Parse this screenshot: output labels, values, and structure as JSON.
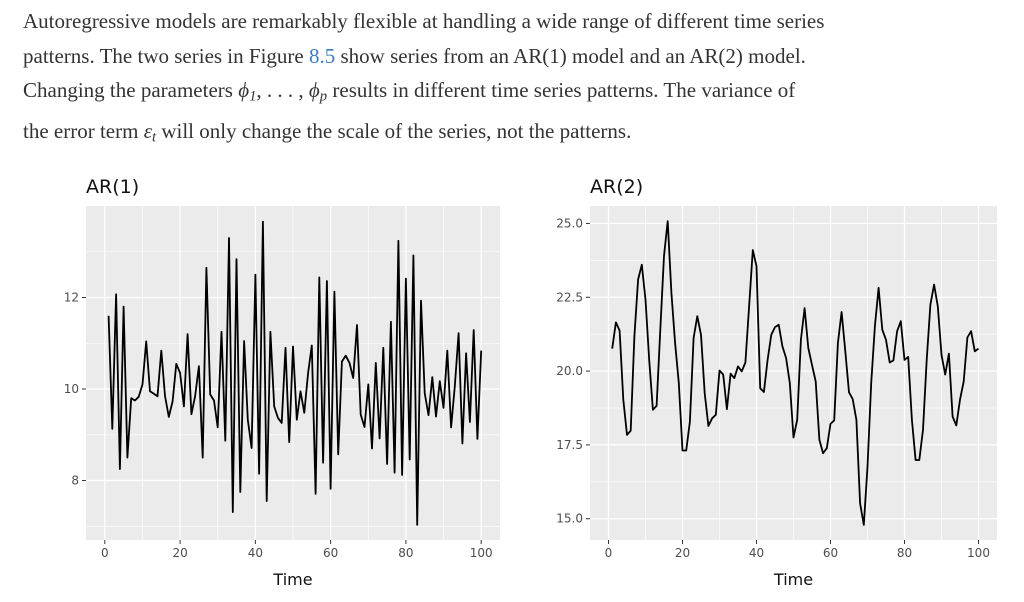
{
  "paragraph": {
    "l1": "Autoregressive models are remarkably flexible at handling a wide range of different time series",
    "l2a": "patterns. The two series in Figure ",
    "l2link": "8.5",
    "l2b": " show series from an AR(1) model and an AR(2) model.",
    "l3a": "Changing the parameters ",
    "phi": "ϕ",
    "sub1": "1",
    "dots": ", . . . , ",
    "subp": "p",
    "l3b": " results in different time series patterns. The variance of",
    "l4a": "the error term ",
    "eps": "ε",
    "subt": "t",
    "l4b": " will only change the scale of the series, not the patterns."
  },
  "colors": {
    "panel_bg": "#ebebeb",
    "grid": "#ffffff",
    "line": "#000000",
    "link": "#3a7bbf"
  },
  "chart_data": [
    {
      "type": "line",
      "title": "AR(1)",
      "xlabel": "Time",
      "ylabel": "",
      "xlim": [
        -5,
        105
      ],
      "ylim": [
        6.7,
        14.0
      ],
      "xticks": [
        "0",
        "20",
        "40",
        "60",
        "80",
        "100"
      ],
      "xtick_values": [
        0,
        20,
        40,
        60,
        80,
        100
      ],
      "yticks": [
        "8",
        "10",
        "12"
      ],
      "ytick_values": [
        8,
        10,
        12
      ],
      "grid": true,
      "x": [
        1,
        2,
        3,
        4,
        5,
        6,
        7,
        8,
        9,
        10,
        11,
        12,
        13,
        14,
        15,
        16,
        17,
        18,
        19,
        20,
        21,
        22,
        23,
        24,
        25,
        26,
        27,
        28,
        29,
        30,
        31,
        32,
        33,
        34,
        35,
        36,
        37,
        38,
        39,
        40,
        41,
        42,
        43,
        44,
        45,
        46,
        47,
        48,
        49,
        50,
        51,
        52,
        53,
        54,
        55,
        56,
        57,
        58,
        59,
        60,
        61,
        62,
        63,
        64,
        65,
        66,
        67,
        68,
        69,
        70,
        71,
        72,
        73,
        74,
        75,
        76,
        77,
        78,
        79,
        80,
        81,
        82,
        83,
        84,
        85,
        86,
        87,
        88,
        89,
        90,
        91,
        92,
        93,
        94,
        95,
        96,
        97,
        98,
        99,
        100
      ],
      "y": [
        11.6,
        9.13,
        12.07,
        8.25,
        11.8,
        8.5,
        9.8,
        9.75,
        9.83,
        10.1,
        11.04,
        9.95,
        9.9,
        9.84,
        10.84,
        9.85,
        9.39,
        9.73,
        10.55,
        10.35,
        9.62,
        11.2,
        9.45,
        9.84,
        10.5,
        8.5,
        12.65,
        9.88,
        9.75,
        9.16,
        11.25,
        8.87,
        13.3,
        7.31,
        12.84,
        7.75,
        11.05,
        9.33,
        8.71,
        12.5,
        8.15,
        13.66,
        7.55,
        11.25,
        9.62,
        9.37,
        9.26,
        10.9,
        8.84,
        10.93,
        9.33,
        9.95,
        9.48,
        10.35,
        10.95,
        7.71,
        12.44,
        8.39,
        12.36,
        7.82,
        12.13,
        8.57,
        10.6,
        10.73,
        10.57,
        10.24,
        11.4,
        9.44,
        9.17,
        10.1,
        8.7,
        10.57,
        8.92,
        10.9,
        8.36,
        11.47,
        8.17,
        13.24,
        8.12,
        12.41,
        8.46,
        12.92,
        7.03,
        11.93,
        9.91,
        9.43,
        10.26,
        9.4,
        10.17,
        9.59,
        10.84,
        9.16,
        10.06,
        11.22,
        8.81,
        10.78,
        9.28,
        11.29,
        8.91,
        10.84
      ]
    },
    {
      "type": "line",
      "title": "AR(2)",
      "xlabel": "Time",
      "ylabel": "",
      "xlim": [
        -5,
        105
      ],
      "ylim": [
        14.28,
        25.59
      ],
      "xticks": [
        "0",
        "20",
        "40",
        "60",
        "80",
        "100"
      ],
      "xtick_values": [
        0,
        20,
        40,
        60,
        80,
        100
      ],
      "yticks": [
        "15.0",
        "17.5",
        "20.0",
        "22.5",
        "25.0"
      ],
      "ytick_values": [
        15,
        17.5,
        20,
        22.5,
        25
      ],
      "grid": true,
      "x": [
        1,
        2,
        3,
        4,
        5,
        6,
        7,
        8,
        9,
        10,
        11,
        12,
        13,
        14,
        15,
        16,
        17,
        18,
        19,
        20,
        21,
        22,
        23,
        24,
        25,
        26,
        27,
        28,
        29,
        30,
        31,
        32,
        33,
        34,
        35,
        36,
        37,
        38,
        39,
        40,
        41,
        42,
        43,
        44,
        45,
        46,
        47,
        48,
        49,
        50,
        51,
        52,
        53,
        54,
        55,
        56,
        57,
        58,
        59,
        60,
        61,
        62,
        63,
        64,
        65,
        66,
        67,
        68,
        69,
        70,
        71,
        72,
        73,
        74,
        75,
        76,
        77,
        78,
        79,
        80,
        81,
        82,
        83,
        84,
        85,
        86,
        87,
        88,
        89,
        90,
        91,
        92,
        93,
        94,
        95,
        96,
        97,
        98,
        99,
        100
      ],
      "y": [
        20.76,
        21.65,
        21.37,
        19.03,
        17.84,
        17.98,
        21.18,
        23.1,
        23.6,
        22.42,
        20.38,
        18.69,
        18.82,
        21.4,
        23.9,
        25.08,
        22.65,
        20.95,
        19.6,
        17.31,
        17.31,
        18.29,
        21.12,
        21.86,
        21.23,
        19.25,
        18.14,
        18.4,
        18.52,
        20.02,
        19.88,
        18.71,
        19.91,
        19.76,
        20.16,
        19.99,
        20.29,
        22.19,
        24.1,
        23.55,
        19.42,
        19.29,
        20.38,
        21.23,
        21.49,
        21.57,
        20.84,
        20.44,
        19.6,
        17.75,
        18.35,
        21.06,
        22.13,
        20.78,
        20.21,
        19.65,
        17.67,
        17.22,
        17.39,
        18.21,
        18.33,
        20.95,
        22.0,
        20.67,
        19.28,
        19.05,
        18.35,
        15.52,
        14.79,
        16.76,
        19.59,
        21.52,
        22.82,
        21.4,
        21.06,
        20.29,
        20.36,
        21.35,
        21.69,
        20.38,
        20.48,
        18.35,
        16.99,
        16.99,
        18.01,
        20.38,
        22.25,
        22.93,
        22.19,
        20.55,
        19.88,
        20.59,
        18.46,
        18.16,
        19.03,
        19.65,
        21.14,
        21.35,
        20.67,
        20.76
      ]
    }
  ]
}
